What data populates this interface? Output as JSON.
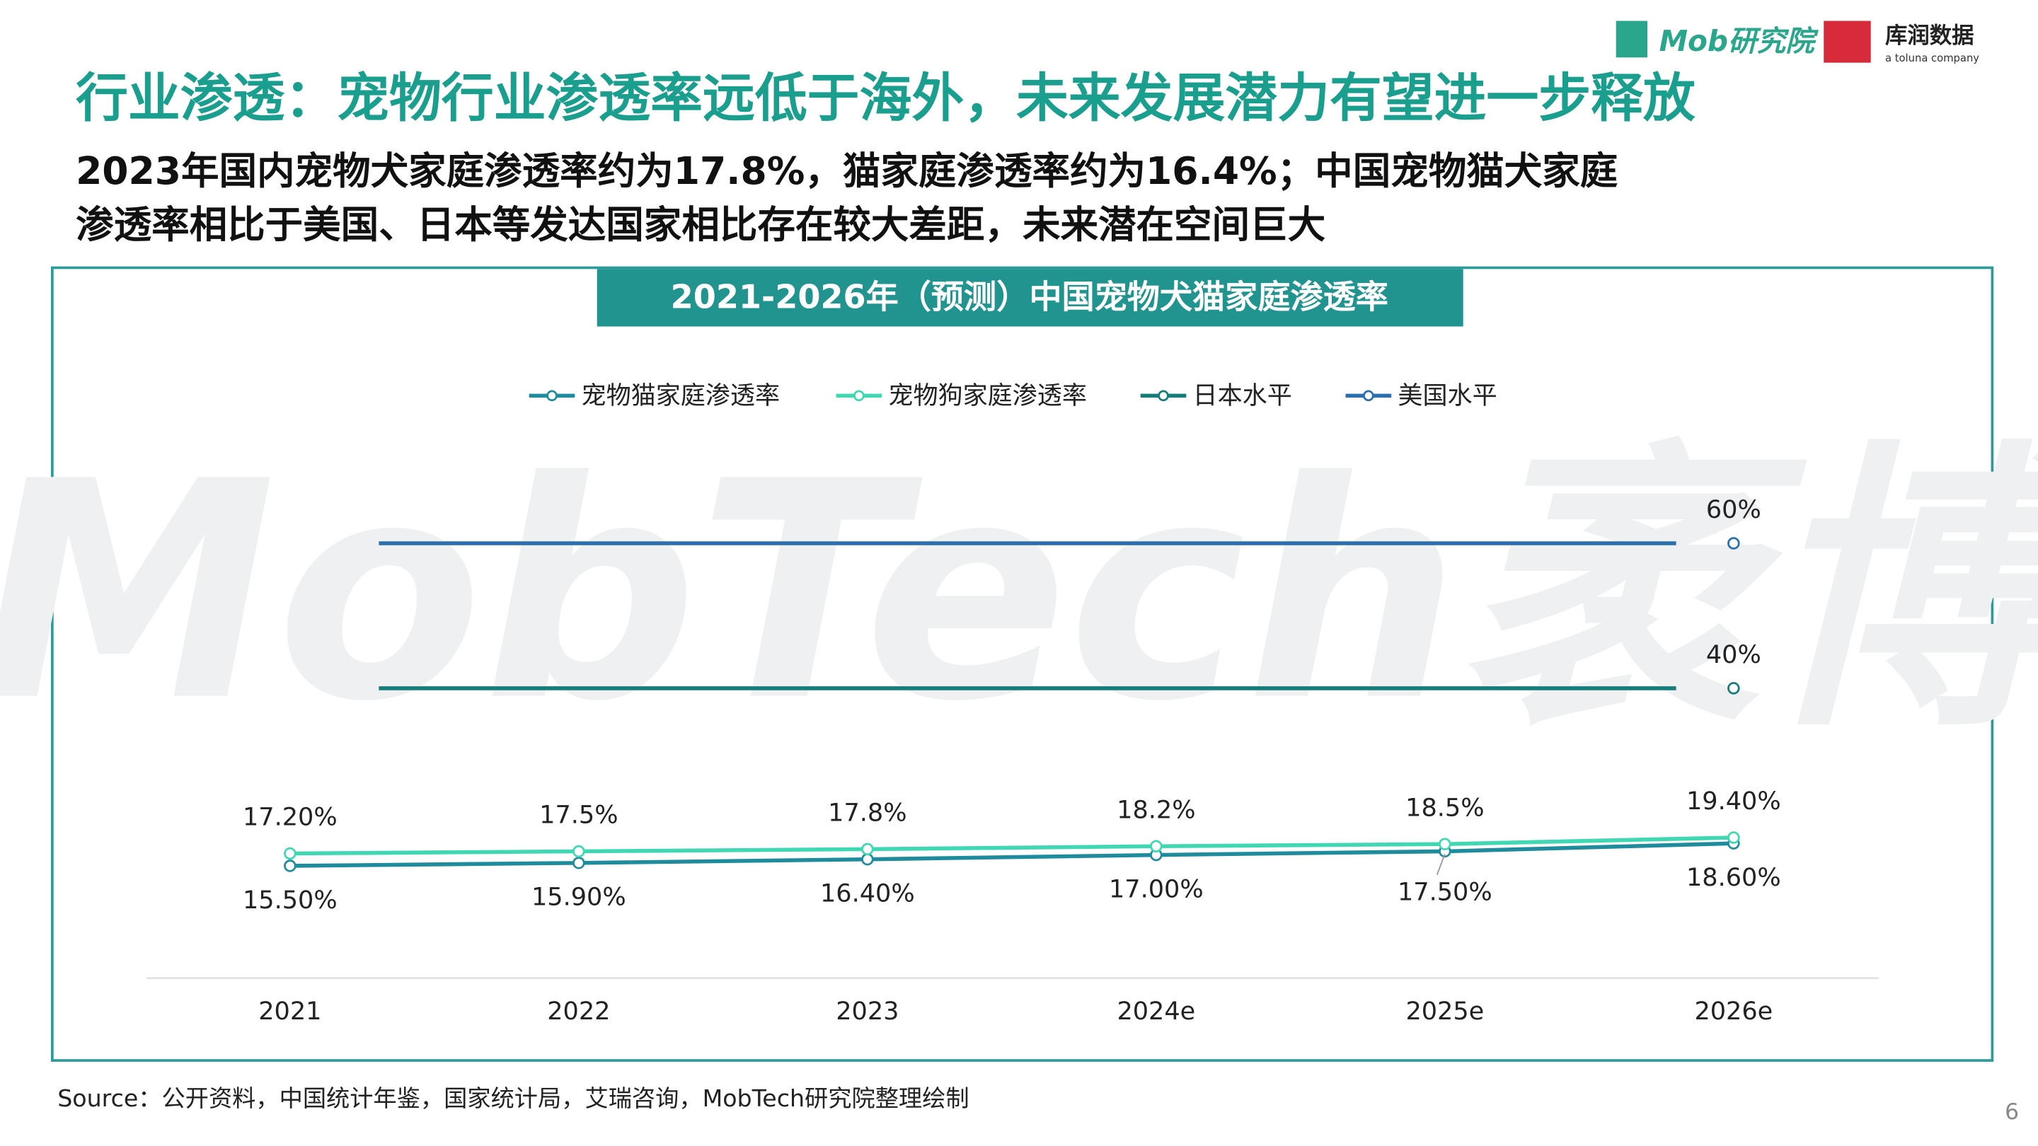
{
  "header": {
    "title": "行业渗透：宠物行业渗透率远低于海外，未来发展潜力有望进一步释放",
    "subtitle": [
      "2023年国内宠物犬家庭渗透率约为17.8%，猫家庭渗透率约为16.4%；中国宠物猫犬家庭",
      "渗透率相比于美国、日本等发达国家相比存在较大差距，未来潜在空间巨大"
    ],
    "logo_mob": "Mob研究院",
    "logo_kurun": "库润数据",
    "logo_toluna": "a toluna company"
  },
  "chart_data": {
    "type": "line",
    "title": "2021-2026年（预测）中国宠物犬猫家庭渗透率",
    "watermark": "MobTech袤博",
    "categories": [
      "2021",
      "2022",
      "2023",
      "2024e",
      "2025e",
      "2026e"
    ],
    "series": [
      {
        "name": "宠物猫家庭渗透率",
        "color": "#1e8c9c",
        "values": [
          15.5,
          15.9,
          16.4,
          17.0,
          17.5,
          18.6
        ],
        "value_labels": [
          "15.50%",
          "15.90%",
          "16.40%",
          "17.00%",
          "17.50%",
          "18.60%"
        ]
      },
      {
        "name": "宠物狗家庭渗透率",
        "color": "#3fd8b2",
        "values": [
          17.2,
          17.5,
          17.8,
          18.2,
          18.5,
          19.4
        ],
        "value_labels": [
          "17.20%",
          "17.5%",
          "17.8%",
          "18.2%",
          "18.5%",
          "19.40%"
        ]
      },
      {
        "name": "日本水平",
        "color": "#167c7a",
        "values": [
          null,
          null,
          null,
          null,
          null,
          40
        ],
        "value_labels": [
          null,
          null,
          null,
          null,
          null,
          "40%"
        ]
      },
      {
        "name": "美国水平",
        "color": "#2b6fb1",
        "values": [
          null,
          null,
          null,
          null,
          null,
          60
        ],
        "value_labels": [
          null,
          null,
          null,
          null,
          null,
          "60%"
        ]
      }
    ]
  },
  "footer": {
    "source": "Source：公开资料，中国统计年鉴，国家统计局，艾瑞咨询，MobTech研究院整理绘制",
    "page": "6"
  }
}
